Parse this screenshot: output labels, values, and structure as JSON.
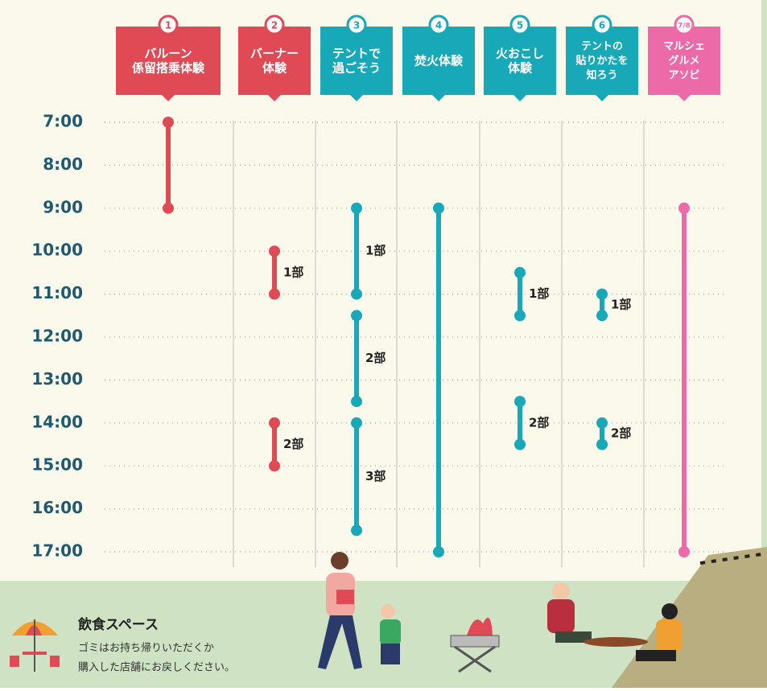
{
  "chart_data": {
    "type": "timeline",
    "yticks": [
      {
        "value": 7,
        "label": "7:00"
      },
      {
        "value": 8,
        "label": "8:00"
      },
      {
        "value": 9,
        "label": "9:00"
      },
      {
        "value": 10,
        "label": "10:00"
      },
      {
        "value": 11,
        "label": "11:00"
      },
      {
        "value": 12,
        "label": "12:00"
      },
      {
        "value": 13,
        "label": "13:00"
      },
      {
        "value": 14,
        "label": "14:00"
      },
      {
        "value": 15,
        "label": "15:00"
      },
      {
        "value": 16,
        "label": "16:00"
      },
      {
        "value": 17,
        "label": "17:00"
      }
    ],
    "ylim": [
      7,
      17
    ],
    "grid": true,
    "columns": [
      {
        "badge": "1",
        "label": [
          "バルーン",
          "係留搭乗体験"
        ],
        "color": "#e04a55",
        "sessions": [
          {
            "start": 7,
            "end": 9
          }
        ]
      },
      {
        "badge": "2",
        "label": [
          "バーナー",
          "体験"
        ],
        "color": "#e04a55",
        "sessions": [
          {
            "start": 10,
            "end": 11,
            "name": "1部"
          },
          {
            "start": 14,
            "end": 15,
            "name": "2部"
          }
        ]
      },
      {
        "badge": "3",
        "label": [
          "テントで",
          "過ごそう"
        ],
        "color": "#17a9b8",
        "sessions": [
          {
            "start": 9,
            "end": 11,
            "name": "1部"
          },
          {
            "start": 11.5,
            "end": 13.5,
            "name": "2部"
          },
          {
            "start": 14,
            "end": 16.5,
            "name": "3部"
          }
        ]
      },
      {
        "badge": "4",
        "label": [
          "焚火体験"
        ],
        "color": "#17a9b8",
        "sessions": [
          {
            "start": 9,
            "end": 17
          }
        ]
      },
      {
        "badge": "5",
        "label": [
          "火おこし",
          "体験"
        ],
        "color": "#17a9b8",
        "sessions": [
          {
            "start": 10.5,
            "end": 11.5,
            "name": "1部"
          },
          {
            "start": 13.5,
            "end": 14.5,
            "name": "2部"
          }
        ]
      },
      {
        "badge": "6",
        "label": [
          "テントの",
          "貼りかたを",
          "知ろう"
        ],
        "color": "#17a9b8",
        "sessions": [
          {
            "start": 11,
            "end": 11.5,
            "name": "1部"
          },
          {
            "start": 14,
            "end": 14.5,
            "name": "2部"
          }
        ]
      },
      {
        "badge": "7/8",
        "label": [
          "マルシェ",
          "グルメ",
          "アソビ"
        ],
        "color": "#ec6aa7",
        "sessions": [
          {
            "start": 9,
            "end": 17
          }
        ]
      }
    ]
  },
  "footer": {
    "title": "飲食スペース",
    "lines": [
      "ゴミはお持ち帰りいただくか",
      "購入した店舗にお戻しください。"
    ]
  }
}
